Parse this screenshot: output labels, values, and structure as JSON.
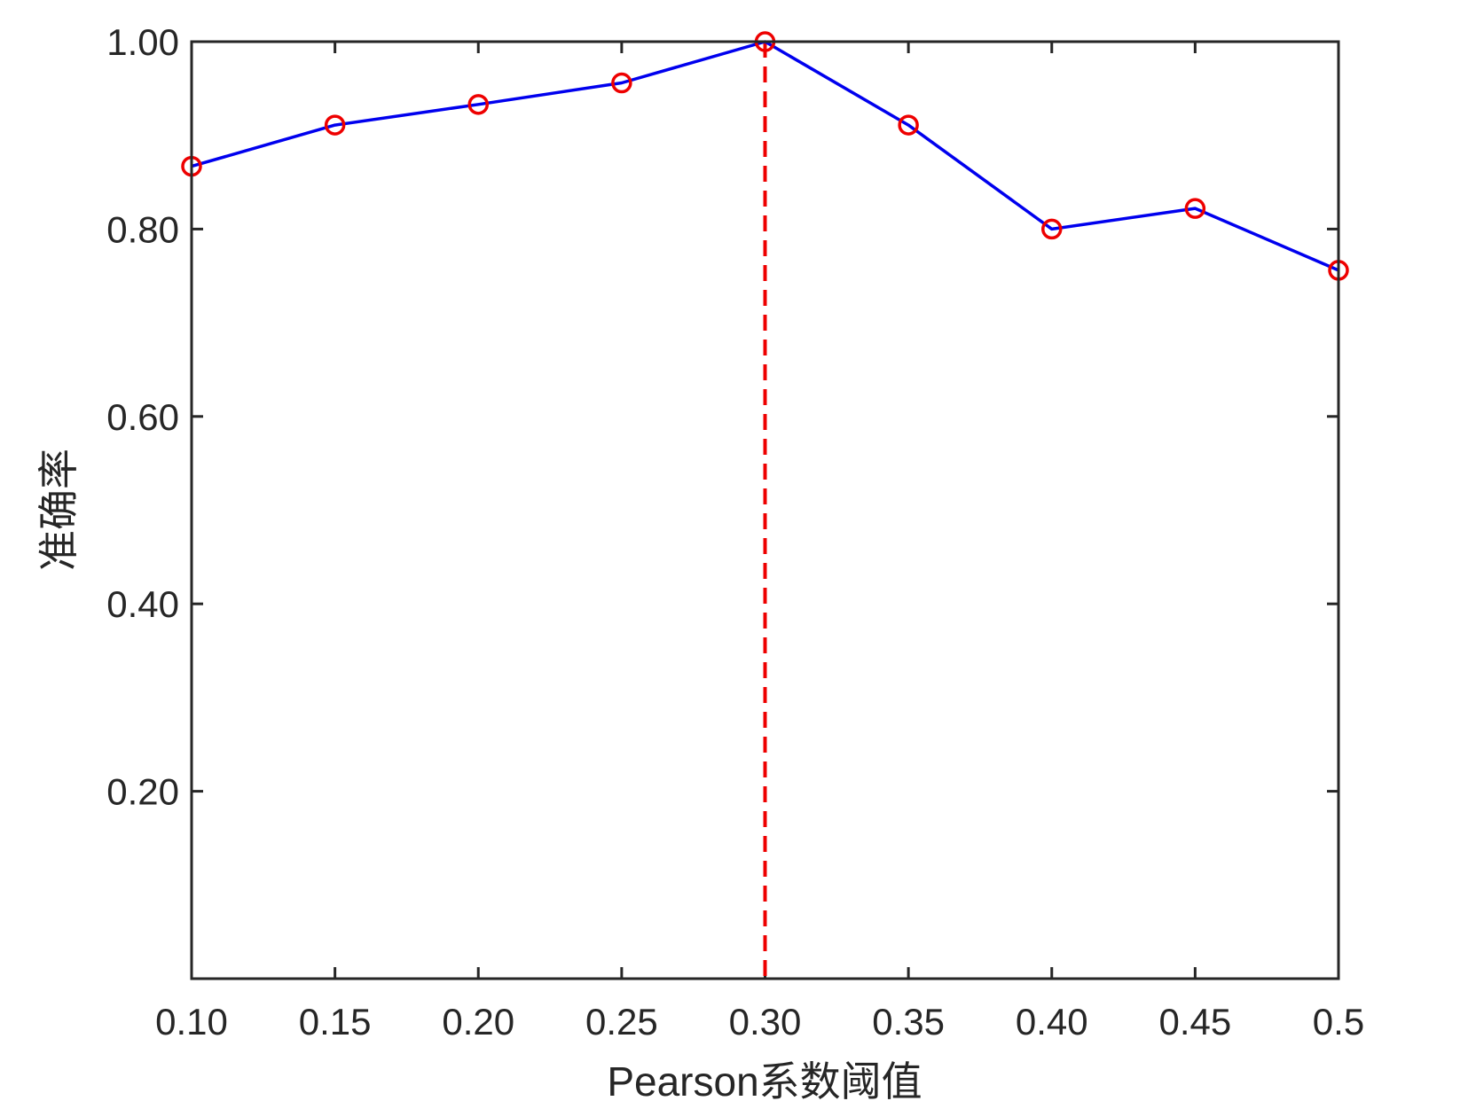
{
  "chart_data": {
    "type": "line",
    "title": "",
    "xlabel": "Pearson系数阈值",
    "ylabel": "准确率",
    "x": [
      0.1,
      0.15,
      0.2,
      0.25,
      0.3,
      0.35,
      0.4,
      0.45,
      0.5
    ],
    "x_tick_labels": [
      "0.10",
      "0.15",
      "0.20",
      "0.25",
      "0.30",
      "0.35",
      "0.40",
      "0.45",
      "0.5"
    ],
    "y_ticks": [
      0.2,
      0.4,
      0.6,
      0.8,
      1.0
    ],
    "y_tick_labels": [
      "0.20",
      "0.40",
      "0.60",
      "0.80",
      "1.00"
    ],
    "xlim": [
      0.1,
      0.5
    ],
    "ylim": [
      0.0,
      1.0
    ],
    "series": [
      {
        "values": [
          0.867,
          0.911,
          0.933,
          0.956,
          1.0,
          0.911,
          0.8,
          0.822,
          0.756
        ],
        "line_color": "#0000ee",
        "marker": "circle",
        "marker_color": "#ee0000"
      }
    ],
    "reference_line": {
      "orientation": "vertical",
      "x": 0.3,
      "style": "dashed",
      "color": "#ee0000"
    },
    "grid": false,
    "legend": "none",
    "axis_color": "#262626"
  }
}
